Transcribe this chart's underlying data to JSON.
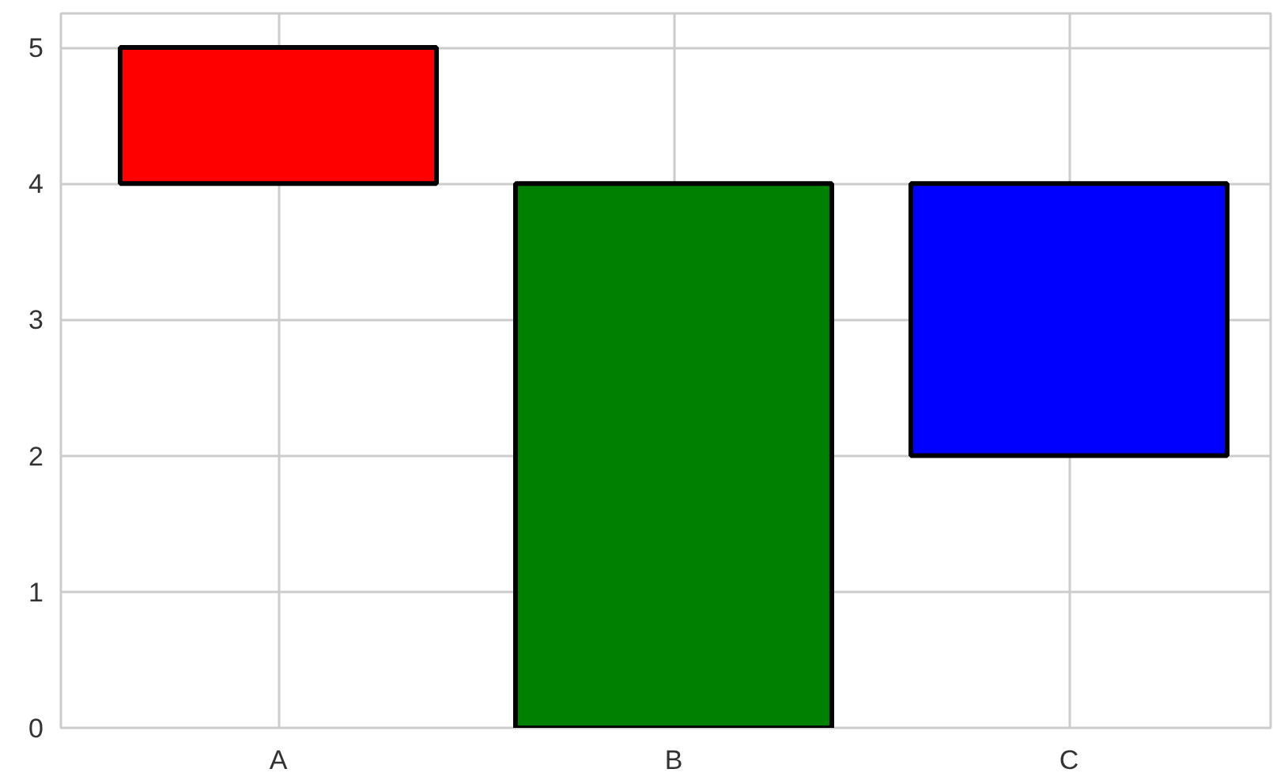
{
  "chart_data": {
    "type": "bar",
    "categories": [
      "A",
      "B",
      "C"
    ],
    "values": [
      1,
      4,
      2
    ],
    "base": [
      4,
      0,
      2
    ],
    "colors": [
      "#ff0000",
      "#008000",
      "#0000ff"
    ],
    "ylim": [
      0,
      5.25
    ],
    "yticks": [
      0,
      1,
      2,
      3,
      4,
      5
    ],
    "grid": true
  }
}
